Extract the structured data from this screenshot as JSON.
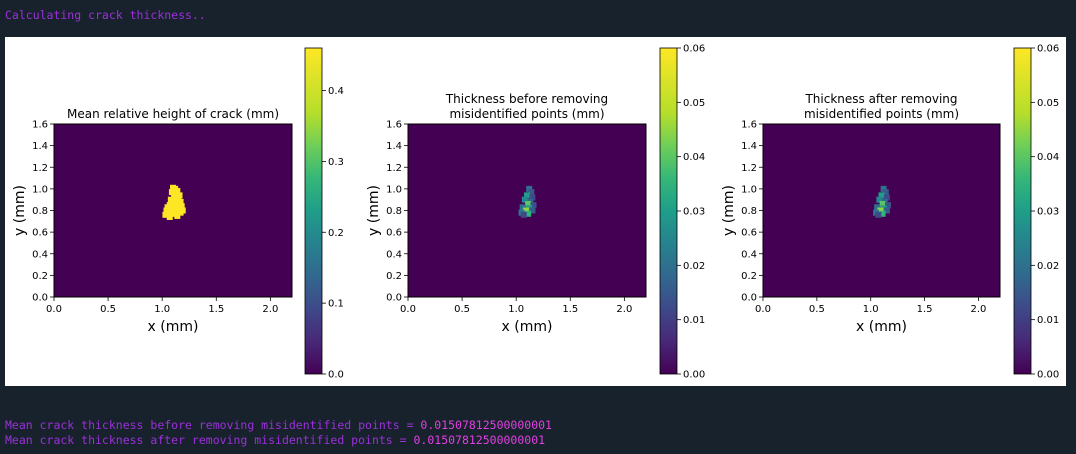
{
  "console": {
    "header": "Calculating crack thickness..",
    "result_before_label": "Mean crack thickness before removing misidentified points = ",
    "result_before_value": "0.01507812500000001",
    "result_after_label": "Mean crack thickness after removing misidentified points = ",
    "result_after_value": "0.01507812500000001"
  },
  "colors": {
    "background": "#18222d",
    "console_text": "#9b30d9",
    "console_value": "#e040e0",
    "viridis_low": "#440154",
    "viridis_high": "#fde725"
  },
  "chart_data": [
    {
      "type": "heatmap",
      "title": "Mean relative height of crack (mm)",
      "xlabel": "x (mm)",
      "ylabel": "y (mm)",
      "xlim": [
        0,
        2.2
      ],
      "ylim": [
        0,
        1.6
      ],
      "xticks": [
        "0.0",
        "0.5",
        "1.0",
        "1.5",
        "2.0"
      ],
      "yticks": [
        "0.0",
        "0.2",
        "0.4",
        "0.6",
        "0.8",
        "1.0",
        "1.2",
        "1.4",
        "1.6"
      ],
      "colorbar": {
        "min": 0,
        "max": 0.46,
        "colormap": "viridis",
        "ticks": [
          "0.0",
          "0.1",
          "0.2",
          "0.3",
          "0.4"
        ]
      },
      "background_value": 0,
      "crack_points": [
        [
          1.1,
          1.01
        ],
        [
          1.12,
          1.0
        ],
        [
          1.14,
          0.98
        ],
        [
          1.09,
          0.97
        ],
        [
          1.13,
          0.95
        ],
        [
          1.16,
          0.94
        ],
        [
          1.11,
          0.93
        ],
        [
          1.15,
          0.91
        ],
        [
          1.08,
          0.9
        ],
        [
          1.12,
          0.89
        ],
        [
          1.17,
          0.88
        ],
        [
          1.1,
          0.87
        ],
        [
          1.14,
          0.86
        ],
        [
          1.07,
          0.85
        ],
        [
          1.18,
          0.84
        ],
        [
          1.05,
          0.83
        ],
        [
          1.11,
          0.82
        ],
        [
          1.15,
          0.82
        ],
        [
          1.08,
          0.81
        ],
        [
          1.19,
          0.8
        ],
        [
          1.04,
          0.8
        ],
        [
          1.13,
          0.79
        ],
        [
          1.06,
          0.78
        ],
        [
          1.17,
          0.78
        ],
        [
          1.09,
          0.77
        ],
        [
          1.03,
          0.76
        ],
        [
          1.14,
          0.75
        ],
        [
          1.07,
          0.74
        ],
        [
          1.11,
          0.77
        ]
      ],
      "crack_value": 0.46
    },
    {
      "type": "heatmap",
      "title": "Thickness before removing misidentified points (mm)",
      "xlabel": "x (mm)",
      "ylabel": "y (mm)",
      "xlim": [
        0,
        2.2
      ],
      "ylim": [
        0,
        1.6
      ],
      "xticks": [
        "0.0",
        "0.5",
        "1.0",
        "1.5",
        "2.0"
      ],
      "yticks": [
        "0.0",
        "0.2",
        "0.4",
        "0.6",
        "0.8",
        "1.0",
        "1.2",
        "1.4",
        "1.6"
      ],
      "colorbar": {
        "min": 0,
        "max": 0.06,
        "colormap": "viridis",
        "ticks": [
          "0.00",
          "0.01",
          "0.02",
          "0.03",
          "0.04",
          "0.05",
          "0.06"
        ]
      },
      "background_value": 0,
      "crack_points": [
        [
          1.12,
          1.0,
          0.02
        ],
        [
          1.14,
          0.97,
          0.015
        ],
        [
          1.1,
          0.94,
          0.03
        ],
        [
          1.15,
          0.92,
          0.012
        ],
        [
          1.08,
          0.9,
          0.025
        ],
        [
          1.13,
          0.88,
          0.018
        ],
        [
          1.11,
          0.86,
          0.04
        ],
        [
          1.16,
          0.85,
          0.014
        ],
        [
          1.06,
          0.83,
          0.02
        ],
        [
          1.12,
          0.82,
          0.03
        ],
        [
          1.09,
          0.8,
          0.045
        ],
        [
          1.15,
          0.8,
          0.016
        ],
        [
          1.05,
          0.78,
          0.022
        ],
        [
          1.11,
          0.77,
          0.035
        ],
        [
          1.07,
          0.76,
          0.012
        ]
      ]
    },
    {
      "type": "heatmap",
      "title": "Thickness after removing misidentified points (mm)",
      "xlabel": "x (mm)",
      "ylabel": "y (mm)",
      "xlim": [
        0,
        2.2
      ],
      "ylim": [
        0,
        1.6
      ],
      "xticks": [
        "0.0",
        "0.5",
        "1.0",
        "1.5",
        "2.0"
      ],
      "yticks": [
        "0.0",
        "0.2",
        "0.4",
        "0.6",
        "0.8",
        "1.0",
        "1.2",
        "1.4",
        "1.6"
      ],
      "colorbar": {
        "min": 0,
        "max": 0.06,
        "colormap": "viridis",
        "ticks": [
          "0.00",
          "0.01",
          "0.02",
          "0.03",
          "0.04",
          "0.05",
          "0.06"
        ]
      },
      "background_value": 0,
      "crack_points": [
        [
          1.12,
          1.0,
          0.02
        ],
        [
          1.14,
          0.97,
          0.015
        ],
        [
          1.1,
          0.94,
          0.03
        ],
        [
          1.15,
          0.92,
          0.012
        ],
        [
          1.08,
          0.9,
          0.025
        ],
        [
          1.13,
          0.88,
          0.018
        ],
        [
          1.11,
          0.86,
          0.04
        ],
        [
          1.16,
          0.85,
          0.014
        ],
        [
          1.06,
          0.83,
          0.02
        ],
        [
          1.12,
          0.82,
          0.03
        ],
        [
          1.09,
          0.8,
          0.045
        ],
        [
          1.15,
          0.8,
          0.016
        ],
        [
          1.05,
          0.78,
          0.022
        ],
        [
          1.11,
          0.77,
          0.035
        ],
        [
          1.07,
          0.76,
          0.012
        ]
      ]
    }
  ]
}
